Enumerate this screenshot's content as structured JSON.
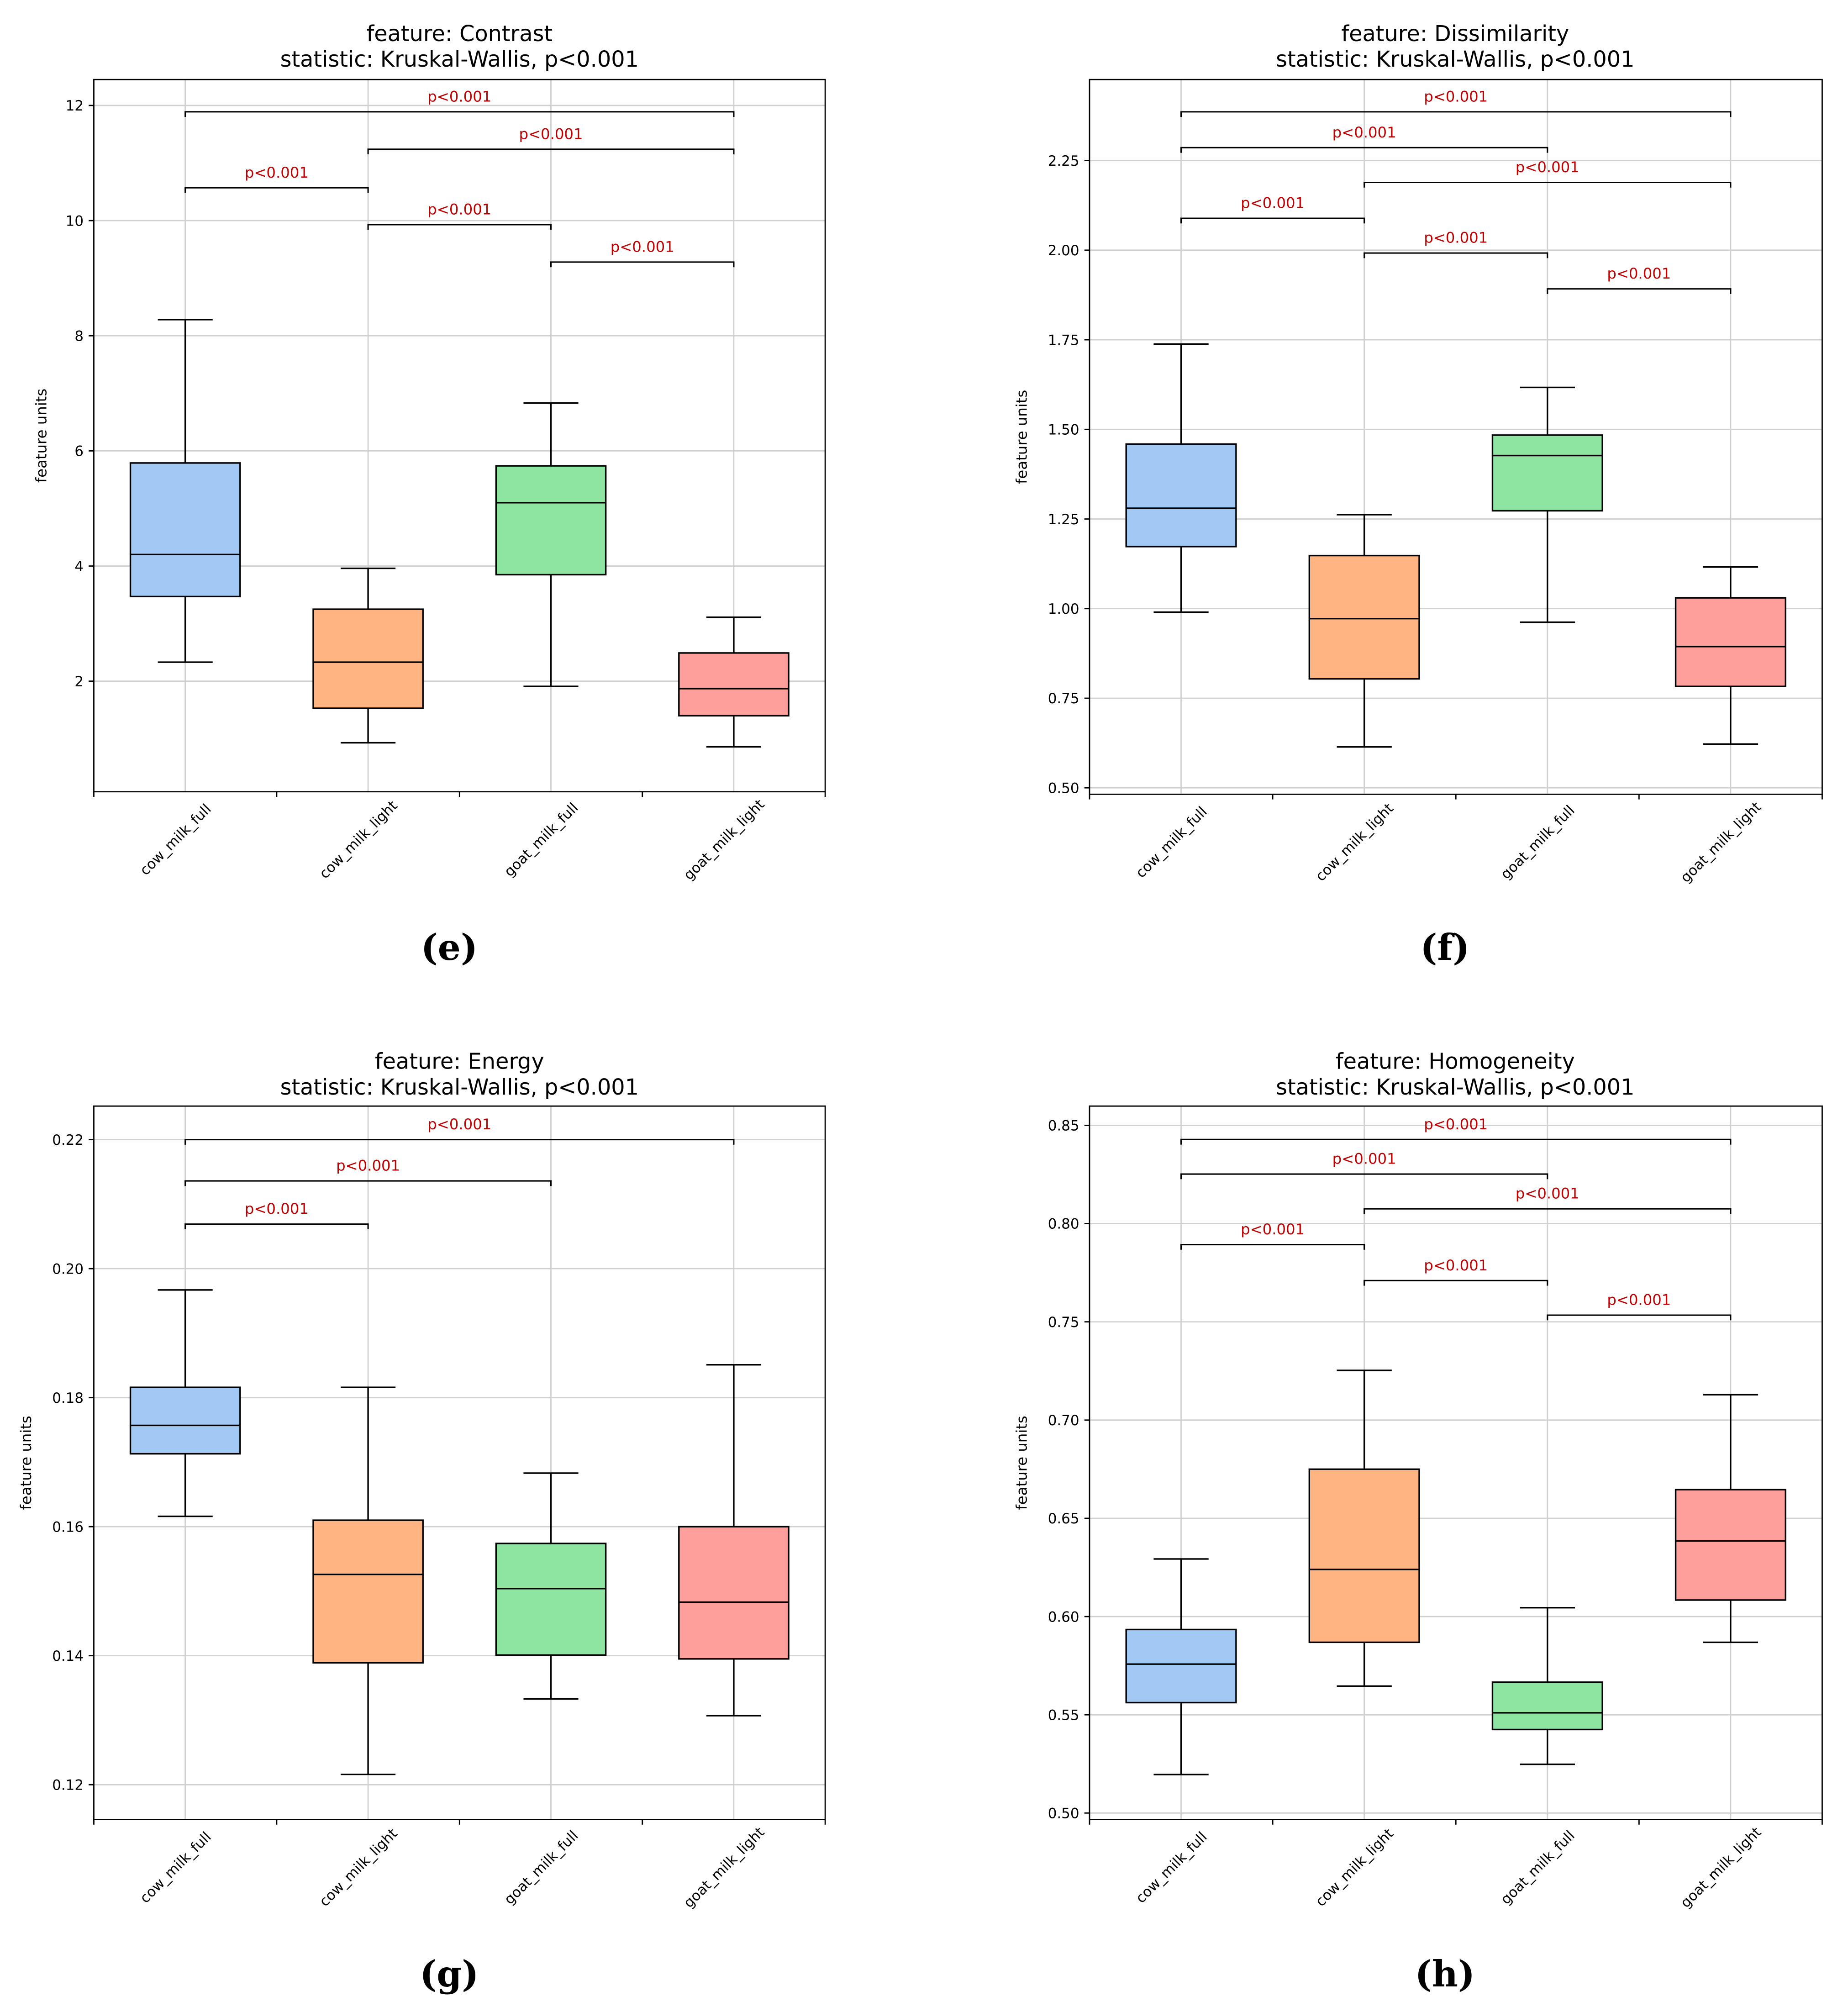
{
  "chart_data": [
    {
      "type": "box",
      "panel_label": "(e)",
      "title": [
        "feature: Contrast",
        "statistic: Kruskal-Wallis, p<0.001"
      ],
      "ylabel": "feature units",
      "ylim": [
        0.08,
        12.45
      ],
      "yticks": [
        2,
        4,
        6,
        8,
        10,
        12
      ],
      "ytick_labels": [
        "2",
        "4",
        "6",
        "8",
        "10",
        "12"
      ],
      "grid": true,
      "categories": [
        "cow_milk_full",
        "cow_milk_light",
        "goat_milk_full",
        "goat_milk_light"
      ],
      "colors": [
        "#a1c9f4",
        "#ffb482",
        "#8de5a1",
        "#ff9f9b"
      ],
      "boxes": [
        {
          "whislo": 2.33,
          "q1": 3.47,
          "med": 4.2,
          "q3": 5.79,
          "whishi": 8.28
        },
        {
          "whislo": 0.93,
          "q1": 1.53,
          "med": 2.33,
          "q3": 3.25,
          "whishi": 3.96
        },
        {
          "whislo": 1.91,
          "q1": 3.85,
          "med": 5.1,
          "q3": 5.74,
          "whishi": 6.83
        },
        {
          "whislo": 0.86,
          "q1": 1.4,
          "med": 1.87,
          "q3": 2.49,
          "whishi": 3.11
        }
      ],
      "comparisons": [
        {
          "pair": [
            0,
            3
          ],
          "y": 11.89,
          "label": "p<0.001"
        },
        {
          "pair": [
            1,
            3
          ],
          "y": 11.24,
          "label": "p<0.001"
        },
        {
          "pair": [
            0,
            1
          ],
          "y": 10.57,
          "label": "p<0.001"
        },
        {
          "pair": [
            1,
            2
          ],
          "y": 9.93,
          "label": "p<0.001"
        },
        {
          "pair": [
            2,
            3
          ],
          "y": 9.28,
          "label": "p<0.001"
        }
      ]
    },
    {
      "type": "box",
      "panel_label": "(f)",
      "title": [
        "feature: Dissimilarity",
        "statistic: Kruskal-Wallis, p<0.001"
      ],
      "ylabel": "feature units",
      "ylim": [
        0.482,
        2.476
      ],
      "yticks": [
        0.5,
        0.75,
        1.0,
        1.25,
        1.5,
        1.75,
        2.0,
        2.25
      ],
      "ytick_labels": [
        "0.50",
        "0.75",
        "1.00",
        "1.25",
        "1.50",
        "1.75",
        "2.00",
        "2.25"
      ],
      "grid": true,
      "categories": [
        "cow_milk_full",
        "cow_milk_light",
        "goat_milk_full",
        "goat_milk_light"
      ],
      "colors": [
        "#a1c9f4",
        "#ffb482",
        "#8de5a1",
        "#ff9f9b"
      ],
      "boxes": [
        {
          "whislo": 0.99,
          "q1": 1.173,
          "med": 1.28,
          "q3": 1.459,
          "whishi": 1.738
        },
        {
          "whislo": 0.614,
          "q1": 0.804,
          "med": 0.972,
          "q3": 1.148,
          "whishi": 1.262
        },
        {
          "whislo": 0.962,
          "q1": 1.273,
          "med": 1.427,
          "q3": 1.484,
          "whishi": 1.617
        },
        {
          "whislo": 0.622,
          "q1": 0.783,
          "med": 0.894,
          "q3": 1.03,
          "whishi": 1.116
        }
      ],
      "comparisons": [
        {
          "pair": [
            0,
            3
          ],
          "y": 2.386,
          "label": "p<0.001"
        },
        {
          "pair": [
            0,
            2
          ],
          "y": 2.286,
          "label": "p<0.001"
        },
        {
          "pair": [
            1,
            3
          ],
          "y": 2.189,
          "label": "p<0.001"
        },
        {
          "pair": [
            0,
            1
          ],
          "y": 2.089,
          "label": "p<0.001"
        },
        {
          "pair": [
            1,
            2
          ],
          "y": 1.992,
          "label": "p<0.001"
        },
        {
          "pair": [
            2,
            3
          ],
          "y": 1.892,
          "label": "p<0.001"
        }
      ]
    },
    {
      "type": "box",
      "panel_label": "(g)",
      "title": [
        "feature: Energy",
        "statistic: Kruskal-Wallis, p<0.001"
      ],
      "ylabel": "feature units",
      "ylim": [
        0.1146,
        0.2252
      ],
      "yticks": [
        0.12,
        0.14,
        0.16,
        0.18,
        0.2,
        0.22
      ],
      "ytick_labels": [
        "0.12",
        "0.14",
        "0.16",
        "0.18",
        "0.20",
        "0.22"
      ],
      "grid": true,
      "categories": [
        "cow_milk_full",
        "cow_milk_light",
        "goat_milk_full",
        "goat_milk_light"
      ],
      "colors": [
        "#a1c9f4",
        "#ffb482",
        "#8de5a1",
        "#ff9f9b"
      ],
      "boxes": [
        {
          "whislo": 0.1616,
          "q1": 0.1713,
          "med": 0.1757,
          "q3": 0.1816,
          "whishi": 0.1967
        },
        {
          "whislo": 0.1216,
          "q1": 0.1389,
          "med": 0.1526,
          "q3": 0.161,
          "whishi": 0.1816
        },
        {
          "whislo": 0.1333,
          "q1": 0.1401,
          "med": 0.1504,
          "q3": 0.1574,
          "whishi": 0.1683
        },
        {
          "whislo": 0.1307,
          "q1": 0.1395,
          "med": 0.1483,
          "q3": 0.16,
          "whishi": 0.1851
        }
      ],
      "comparisons": [
        {
          "pair": [
            0,
            3
          ],
          "y": 0.22,
          "label": "p<0.001"
        },
        {
          "pair": [
            0,
            2
          ],
          "y": 0.2136,
          "label": "p<0.001"
        },
        {
          "pair": [
            0,
            1
          ],
          "y": 0.2069,
          "label": "p<0.001"
        }
      ]
    },
    {
      "type": "box",
      "panel_label": "(h)",
      "title": [
        "feature: Homogeneity",
        "statistic: Kruskal-Wallis, p<0.001"
      ],
      "ylabel": "feature units",
      "ylim": [
        0.4967,
        0.8598
      ],
      "yticks": [
        0.5,
        0.55,
        0.6,
        0.65,
        0.7,
        0.75,
        0.8,
        0.85
      ],
      "ytick_labels": [
        "0.50",
        "0.55",
        "0.60",
        "0.65",
        "0.70",
        "0.75",
        "0.80",
        "0.85"
      ],
      "grid": true,
      "categories": [
        "cow_milk_full",
        "cow_milk_light",
        "goat_milk_full",
        "goat_milk_light"
      ],
      "colors": [
        "#a1c9f4",
        "#ffb482",
        "#8de5a1",
        "#ff9f9b"
      ],
      "boxes": [
        {
          "whislo": 0.5196,
          "q1": 0.5562,
          "med": 0.5758,
          "q3": 0.5934,
          "whishi": 0.6293
        },
        {
          "whislo": 0.5646,
          "q1": 0.5869,
          "med": 0.624,
          "q3": 0.675,
          "whishi": 0.7253
        },
        {
          "whislo": 0.5248,
          "q1": 0.5425,
          "med": 0.551,
          "q3": 0.5666,
          "whishi": 0.6045
        },
        {
          "whislo": 0.5869,
          "q1": 0.6084,
          "med": 0.6385,
          "q3": 0.6646,
          "whishi": 0.7129
        }
      ],
      "comparisons": [
        {
          "pair": [
            0,
            3
          ],
          "y": 0.8428,
          "label": "p<0.001"
        },
        {
          "pair": [
            0,
            2
          ],
          "y": 0.8252,
          "label": "p<0.001"
        },
        {
          "pair": [
            1,
            3
          ],
          "y": 0.8075,
          "label": "p<0.001"
        },
        {
          "pair": [
            0,
            1
          ],
          "y": 0.7893,
          "label": "p<0.001"
        },
        {
          "pair": [
            1,
            2
          ],
          "y": 0.771,
          "label": "p<0.001"
        },
        {
          "pair": [
            2,
            3
          ],
          "y": 0.7534,
          "label": "p<0.001"
        }
      ]
    }
  ],
  "style": {
    "pvalue_color": "#c00000",
    "grid_color": "#d0d0d0"
  }
}
